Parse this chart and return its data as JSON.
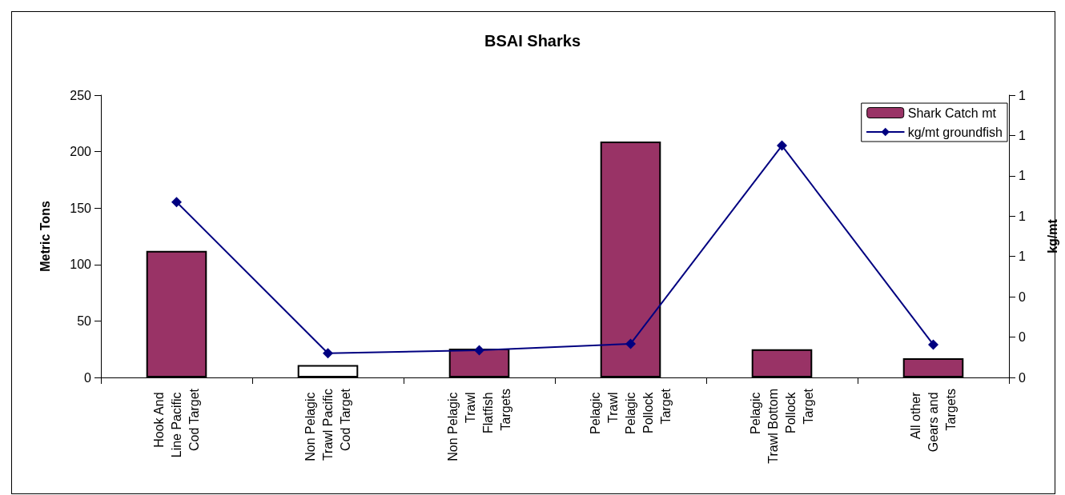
{
  "chart_data": {
    "type": "bar",
    "title": "BSAI Sharks",
    "ylabel": "Metric Tons",
    "y2label": "kg/mt",
    "categories": [
      "Hook And Line Pacific Cod Target",
      "Non Pelagic Trawl Pacific Cod Target",
      "Non Pelagic Trawl Flatfish Targets",
      "Pelagic Trawl Pelagic Pollock Target",
      "Pelagic Trawl Bottom Pollock Target",
      "All other Gears and Targets"
    ],
    "series": [
      {
        "name": "Shark Catch mt",
        "color": "#993366",
        "colors": [
          "#993366",
          "#ffffff",
          "#993366",
          "#993366",
          "#993366",
          "#993366"
        ],
        "values": [
          112,
          11,
          25.5,
          209,
          25,
          17
        ]
      },
      {
        "name": "kg/mt groundfish",
        "type": "line",
        "axis": "y2",
        "color": "#000080",
        "marker": "diamond",
        "values": [
          0.87,
          0.12,
          0.135,
          0.167,
          1.15,
          0.163
        ]
      }
    ],
    "ylim": [
      0,
      250
    ],
    "yticks": [
      0,
      50,
      100,
      150,
      200,
      250
    ],
    "y2lim": [
      0,
      1.4
    ],
    "y2ticks": [
      {
        "value": 0,
        "label": "0"
      },
      {
        "value": 0.2,
        "label": "0"
      },
      {
        "value": 0.4,
        "label": "0"
      },
      {
        "value": 0.6,
        "label": "1"
      },
      {
        "value": 0.8,
        "label": "1"
      },
      {
        "value": 1.0,
        "label": "1"
      },
      {
        "value": 1.2,
        "label": "1"
      },
      {
        "value": 1.4,
        "label": "1"
      }
    ],
    "grid": false,
    "legend": "top right"
  }
}
